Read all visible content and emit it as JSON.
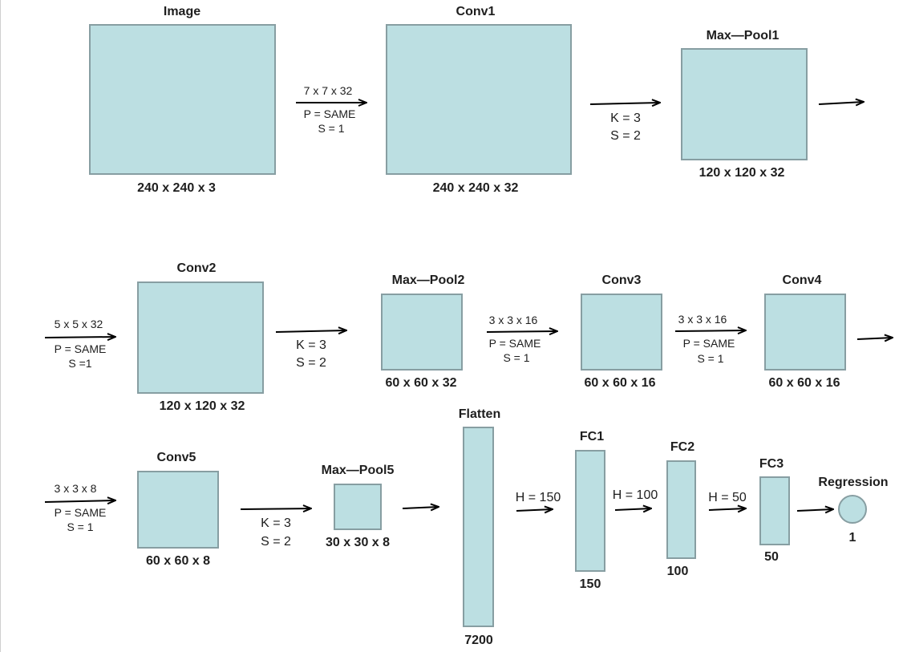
{
  "layers": {
    "image": {
      "title": "Image",
      "dims": "240 x 240 x 3"
    },
    "conv1": {
      "title": "Conv1",
      "dims": "240 x 240 x 32"
    },
    "maxpool1": {
      "title": "Max—Pool1",
      "dims": "120 x 120 x 32"
    },
    "conv2": {
      "title": "Conv2",
      "dims": "120 x 120 x 32"
    },
    "maxpool2": {
      "title": "Max—Pool2",
      "dims": "60 x 60 x 32"
    },
    "conv3": {
      "title": "Conv3",
      "dims": "60 x 60 x 16"
    },
    "conv4": {
      "title": "Conv4",
      "dims": "60 x 60 x 16"
    },
    "conv5": {
      "title": "Conv5",
      "dims": "60 x 60 x 8"
    },
    "maxpool5": {
      "title": "Max—Pool5",
      "dims": "30 x 30 x 8"
    },
    "flatten": {
      "title": "Flatten",
      "dims": "7200"
    },
    "fc1": {
      "title": "FC1",
      "dims": "150"
    },
    "fc2": {
      "title": "FC2",
      "dims": "100"
    },
    "fc3": {
      "title": "FC3",
      "dims": "50"
    },
    "regression": {
      "title": "Regression",
      "dims": "1"
    }
  },
  "ops": {
    "image_conv1": {
      "kernel": "7 x 7 x 32",
      "padding": "P = SAME",
      "stride": "S = 1"
    },
    "conv1_pool1": {
      "kernel": "K = 3",
      "stride": "S = 2"
    },
    "pool1_conv2": {
      "kernel": "5 x 5 x 32",
      "padding": "P = SAME",
      "stride": "S =1"
    },
    "conv2_pool2": {
      "kernel": "K = 3",
      "stride": "S = 2"
    },
    "pool2_conv3": {
      "kernel": "3 x 3 x 16",
      "padding": "P = SAME",
      "stride": "S = 1"
    },
    "conv3_conv4": {
      "kernel": "3 x 3 x 16",
      "padding": "P = SAME",
      "stride": "S = 1"
    },
    "conv4_conv5": {
      "kernel": "3 x 3 x 8",
      "padding": "P = SAME",
      "stride": "S = 1"
    },
    "conv5_pool5": {
      "kernel": "K = 3",
      "stride": "S = 2"
    },
    "flatten_fc1": {
      "hidden": "H = 150"
    },
    "fc1_fc2": {
      "hidden": "H = 100"
    },
    "fc2_fc3": {
      "hidden": "H = 50"
    }
  }
}
